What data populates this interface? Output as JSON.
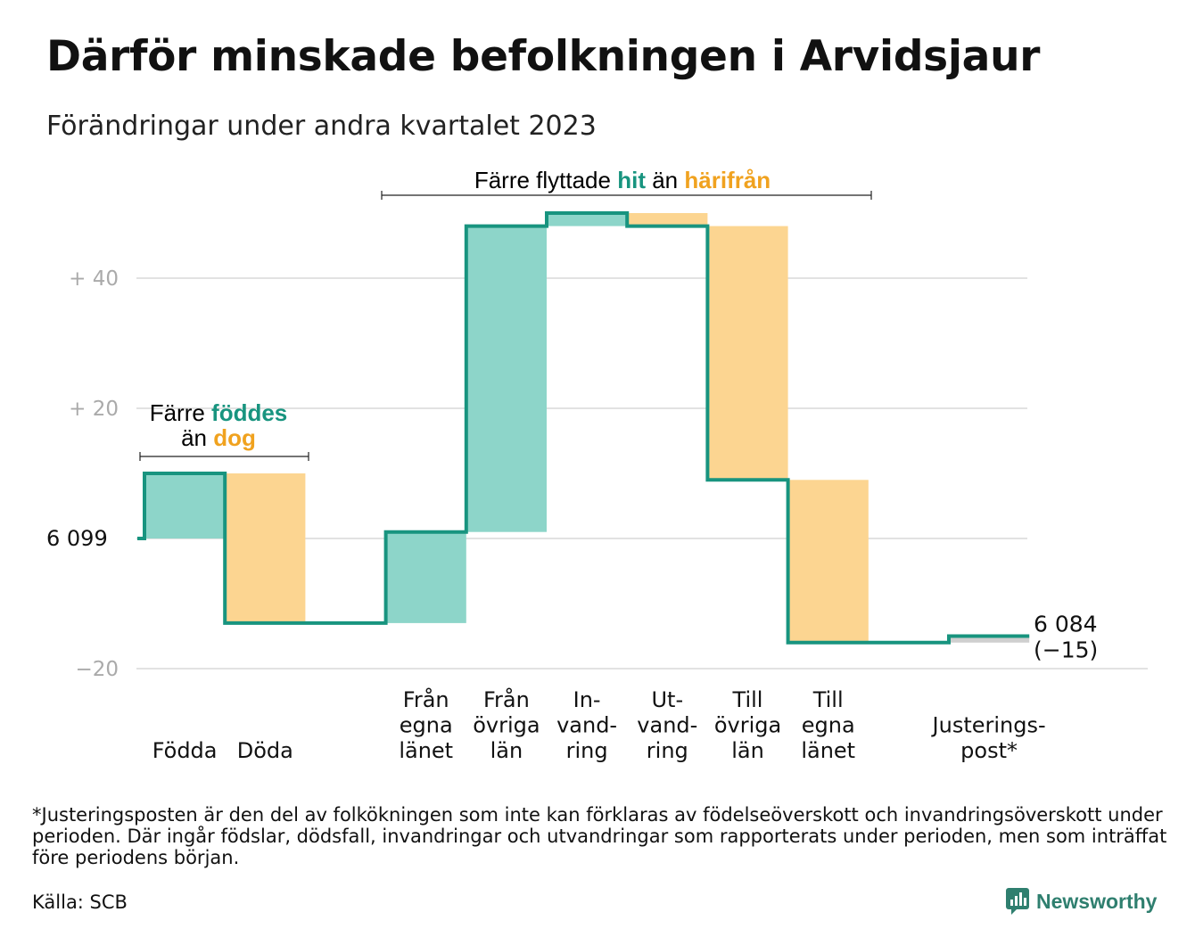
{
  "title": "Därför minskade befolkningen i Arvidsjaur",
  "subtitle": "Förändringar under andra kvartalet 2023",
  "footnote": "*Justeringsposten är den del av folkökningen som inte kan förklaras av födelseöverskott och invandringsöverskott under perioden. Där ingår födslar, dödsfall, invandringar och utvandringar som rapporterats under perioden, men som inträffat före periodens början.",
  "source": "Källa: SCB",
  "brand": {
    "name": "Newsworthy",
    "icon": "newsworthy-logo-icon"
  },
  "colors": {
    "inflow": "#8dd5c9",
    "outflow": "#fcd591",
    "line": "#18947f",
    "adjustment": "#cfcfcf",
    "grid": "#e2e2e2",
    "axis_label": "#aaaaaa"
  },
  "annotations": {
    "births": {
      "line1_prefix": "Färre",
      "line1_highlight": "föddes",
      "line2_prefix": "än",
      "line2_highlight": "dog"
    },
    "migration": {
      "prefix": "Färre flyttade",
      "highlight1": "hit",
      "middle": "än",
      "highlight2": "härifrån"
    }
  },
  "chart_data": {
    "type": "waterfall",
    "start_label": "6  099",
    "end_label": [
      "6 084",
      "(−15)"
    ],
    "start_value": 6099,
    "end_value": 6084,
    "change": -15,
    "y_ticks": [
      {
        "value": 40,
        "label": "+  40"
      },
      {
        "value": 20,
        "label": "+  20"
      },
      {
        "value": -20,
        "label": "−20"
      }
    ],
    "y_range": [
      -20,
      50
    ],
    "grid": true,
    "steps": [
      {
        "label": [
          "Födda"
        ],
        "value": 10,
        "kind": "inflow"
      },
      {
        "label": [
          "Döda"
        ],
        "value": -23,
        "kind": "outflow"
      },
      {
        "label": [],
        "value": 0,
        "kind": "none"
      },
      {
        "label": [
          "Från",
          "egna",
          "länet"
        ],
        "value": 14,
        "kind": "inflow"
      },
      {
        "label": [
          "Från",
          "övriga",
          "län"
        ],
        "value": 47,
        "kind": "inflow"
      },
      {
        "label": [
          "In-",
          "vand-",
          "ring"
        ],
        "value": 2,
        "kind": "inflow"
      },
      {
        "label": [
          "Ut-",
          "vand-",
          "ring"
        ],
        "value": -2,
        "kind": "outflow"
      },
      {
        "label": [
          "Till",
          "övriga",
          "län"
        ],
        "value": -39,
        "kind": "outflow"
      },
      {
        "label": [
          "Till",
          "egna",
          "länet"
        ],
        "value": -25,
        "kind": "outflow"
      },
      {
        "label": [],
        "value": 0,
        "kind": "none"
      },
      {
        "label": [
          "Justerings-",
          "post*"
        ],
        "value": 1,
        "kind": "adjustment"
      }
    ]
  }
}
